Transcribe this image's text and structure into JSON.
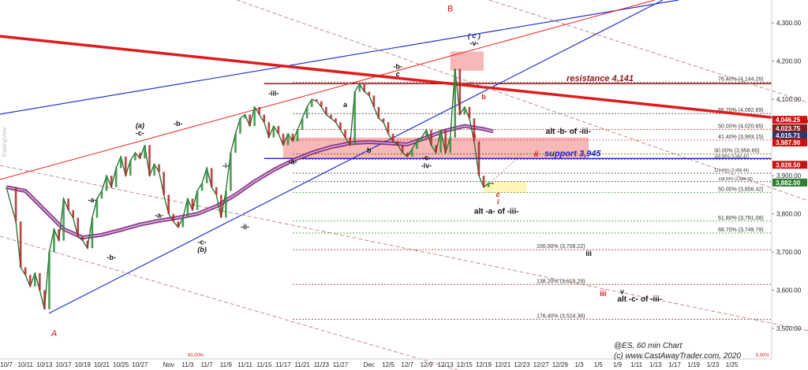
{
  "chart_data": {
    "type": "line",
    "title": "@ES, 60 min Chart",
    "credit": "(c) www.CastAwayTrader.com, 2020",
    "watermark": "TradingView",
    "ylim": [
      3420,
      4360
    ],
    "y_ticks": [
      {
        "value": 3500,
        "label": "3,500.00"
      },
      {
        "value": 3600,
        "label": "3,600.00"
      },
      {
        "value": 3700,
        "label": "3,700.00"
      },
      {
        "value": 3800,
        "label": "3,800.00"
      },
      {
        "value": 3900,
        "label": "3,900.00"
      },
      {
        "value": 4100,
        "label": "4,100.00"
      },
      {
        "value": 4200,
        "label": "4,200.00"
      },
      {
        "value": 4300,
        "label": "4,300.00"
      }
    ],
    "x_ticks": [
      {
        "bar": 0,
        "label": "10/7"
      },
      {
        "bar": 4,
        "label": "10/11"
      },
      {
        "bar": 8,
        "label": "10/13"
      },
      {
        "bar": 12,
        "label": "10/17"
      },
      {
        "bar": 16,
        "label": "10/19"
      },
      {
        "bar": 20,
        "label": "10/21"
      },
      {
        "bar": 24,
        "label": "10/25"
      },
      {
        "bar": 28,
        "label": "10/27"
      },
      {
        "bar": 34,
        "label": "Nov"
      },
      {
        "bar": 38,
        "label": "11/3"
      },
      {
        "bar": 42,
        "label": "11/7"
      },
      {
        "bar": 46,
        "label": "11/9"
      },
      {
        "bar": 50,
        "label": "11/11"
      },
      {
        "bar": 54,
        "label": "11/15"
      },
      {
        "bar": 58,
        "label": "11/17"
      },
      {
        "bar": 62,
        "label": "11/21"
      },
      {
        "bar": 66,
        "label": "11/23"
      },
      {
        "bar": 70,
        "label": "11/27"
      },
      {
        "bar": 76,
        "label": "Dec"
      },
      {
        "bar": 80,
        "label": "12/5"
      },
      {
        "bar": 84,
        "label": "12/7"
      },
      {
        "bar": 88,
        "label": "12/9"
      },
      {
        "bar": 92,
        "label": "12/13"
      },
      {
        "bar": 96,
        "label": "12/15"
      },
      {
        "bar": 100,
        "label": "12/19"
      },
      {
        "bar": 104,
        "label": "12/21"
      },
      {
        "bar": 108,
        "label": "12/23"
      },
      {
        "bar": 112,
        "label": "12/27"
      },
      {
        "bar": 116,
        "label": "12/29"
      },
      {
        "bar": 120,
        "label": "1/3"
      },
      {
        "bar": 124,
        "label": "1/5"
      },
      {
        "bar": 128,
        "label": "1/9"
      },
      {
        "bar": 132,
        "label": "1/11"
      },
      {
        "bar": 136,
        "label": "1/13"
      },
      {
        "bar": 140,
        "label": "1/17"
      },
      {
        "bar": 144,
        "label": "1/19"
      },
      {
        "bar": 148,
        "label": "1/23"
      },
      {
        "bar": 152,
        "label": "1/25"
      }
    ],
    "price_path": [
      [
        0,
        3870
      ],
      [
        2,
        3780
      ],
      [
        3,
        3660
      ],
      [
        4,
        3640
      ],
      [
        5,
        3610
      ],
      [
        6,
        3645
      ],
      [
        7,
        3600
      ],
      [
        8,
        3550
      ],
      [
        9,
        3700
      ],
      [
        10,
        3760
      ],
      [
        11,
        3730
      ],
      [
        12,
        3840
      ],
      [
        13,
        3810
      ],
      [
        14,
        3790
      ],
      [
        15,
        3740
      ],
      [
        16,
        3730
      ],
      [
        17,
        3710
      ],
      [
        18,
        3790
      ],
      [
        19,
        3840
      ],
      [
        20,
        3860
      ],
      [
        21,
        3900
      ],
      [
        22,
        3870
      ],
      [
        23,
        3920
      ],
      [
        24,
        3950
      ],
      [
        25,
        3900
      ],
      [
        26,
        3940
      ],
      [
        27,
        3960
      ],
      [
        28,
        3945
      ],
      [
        29,
        3980
      ],
      [
        30,
        3900
      ],
      [
        31,
        3930
      ],
      [
        32,
        3910
      ],
      [
        33,
        3850
      ],
      [
        34,
        3800
      ],
      [
        35,
        3780
      ],
      [
        36,
        3765
      ],
      [
        37,
        3790
      ],
      [
        38,
        3840
      ],
      [
        39,
        3810
      ],
      [
        40,
        3860
      ],
      [
        41,
        3880
      ],
      [
        42,
        3920
      ],
      [
        43,
        3870
      ],
      [
        44,
        3850
      ],
      [
        45,
        3790
      ],
      [
        46,
        3860
      ],
      [
        47,
        3960
      ],
      [
        48,
        4010
      ],
      [
        49,
        4050
      ],
      [
        50,
        4060
      ],
      [
        51,
        4030
      ],
      [
        52,
        4080
      ],
      [
        53,
        4060
      ],
      [
        54,
        4040
      ],
      [
        55,
        4000
      ],
      [
        56,
        4030
      ],
      [
        57,
        4010
      ],
      [
        58,
        3980
      ],
      [
        59,
        4010
      ],
      [
        60,
        3990
      ],
      [
        61,
        4020
      ],
      [
        62,
        4050
      ],
      [
        63,
        4080
      ],
      [
        64,
        4100
      ],
      [
        65,
        4095
      ],
      [
        66,
        4080
      ],
      [
        67,
        4060
      ],
      [
        68,
        4050
      ],
      [
        69,
        4040
      ],
      [
        70,
        4020
      ],
      [
        71,
        4000
      ],
      [
        72,
        3980
      ],
      [
        73,
        4120
      ],
      [
        74,
        4140
      ],
      [
        75,
        4120
      ],
      [
        76,
        4110
      ],
      [
        77,
        4080
      ],
      [
        78,
        4050
      ],
      [
        79,
        4040
      ],
      [
        80,
        4010
      ],
      [
        81,
        3990
      ],
      [
        82,
        3980
      ],
      [
        83,
        3960
      ],
      [
        84,
        3950
      ],
      [
        85,
        3970
      ],
      [
        86,
        3990
      ],
      [
        87,
        4000
      ],
      [
        88,
        4020
      ],
      [
        89,
        3980
      ],
      [
        90,
        3960
      ],
      [
        91,
        4020
      ],
      [
        92,
        3960
      ],
      [
        93,
        4000
      ],
      [
        94,
        4180
      ],
      [
        95,
        4060
      ],
      [
        96,
        4080
      ],
      [
        97,
        4050
      ],
      [
        98,
        3990
      ],
      [
        99,
        3900
      ],
      [
        100,
        3870
      ],
      [
        101,
        3880
      ],
      [
        102,
        3880
      ]
    ],
    "moving_average": [
      [
        0,
        3870
      ],
      [
        4,
        3860
      ],
      [
        8,
        3810
      ],
      [
        12,
        3760
      ],
      [
        16,
        3738
      ],
      [
        20,
        3745
      ],
      [
        24,
        3758
      ],
      [
        28,
        3772
      ],
      [
        32,
        3782
      ],
      [
        36,
        3790
      ],
      [
        40,
        3800
      ],
      [
        44,
        3820
      ],
      [
        48,
        3850
      ],
      [
        52,
        3885
      ],
      [
        56,
        3915
      ],
      [
        60,
        3940
      ],
      [
        64,
        3960
      ],
      [
        68,
        3975
      ],
      [
        72,
        3985
      ],
      [
        76,
        3988
      ],
      [
        80,
        3985
      ],
      [
        84,
        3982
      ],
      [
        88,
        4000
      ],
      [
        92,
        4018
      ],
      [
        96,
        4030
      ],
      [
        100,
        4022
      ],
      [
        102,
        4016
      ]
    ],
    "fib_levels": [
      {
        "value": 4144.26,
        "label": "76.40% (4,144.26)",
        "color": "#8b1a1a"
      },
      {
        "value": 4062.69,
        "label": "66.70% (4,062.69)",
        "color": "#333333"
      },
      {
        "value": 4020.65,
        "label": "50.00% (4,020.65)",
        "color": "#cc2222"
      },
      {
        "value": 3993.15,
        "label": "41.40% (3,993.15)",
        "color": "#cc2222"
      },
      {
        "value": 3956.65,
        "label": "30.00% (3,956.65)",
        "color": "#333333"
      },
      {
        "value": 3942.42,
        "label": "100.00% (3,942.42)",
        "color": "#333333"
      },
      {
        "value": 3906.49,
        "label": "123.60% (3,906.49)",
        "color": "#333333"
      },
      {
        "value": 3884.26,
        "label": "138.20% (3,884.26)",
        "color": "#333333"
      },
      {
        "value": 3856.42,
        "label": "50.00% (3,856.42)",
        "color": "#228b22"
      },
      {
        "value": 3781.08,
        "label": "61.80% (3,781.08)",
        "color": "#228b22"
      },
      {
        "value": 3749.79,
        "label": "66.70% (3,749.79)",
        "color": "#228b22"
      },
      {
        "value": 3706.22,
        "label": "100.00% (3,706.22)",
        "color": "#8b1a1a"
      },
      {
        "value": 3615.29,
        "label": "138.20% (3,615.29)",
        "color": "#8b1a1a"
      },
      {
        "value": 3524.36,
        "label": "176.40% (3,524.36)",
        "color": "#8b1a1a"
      }
    ],
    "price_tags": [
      {
        "value": 4046.25,
        "label": "4,046.25",
        "color": "#cc1111"
      },
      {
        "value": 4024,
        "label": "4,023.75",
        "color": "#8b1a1a"
      },
      {
        "value": 4015.71,
        "label": "4,015.71",
        "color": "#333366"
      },
      {
        "value": 3987.9,
        "label": "3,987.90",
        "color": "#cc1111"
      },
      {
        "value": 3928.5,
        "label": "3,928.50",
        "color": "#cc1111"
      },
      {
        "value": 3882.0,
        "label": "3,882.00",
        "color": "#2e7d32"
      }
    ],
    "key_levels": [
      {
        "value": 4141,
        "label": "resistance 4,141",
        "color": "#8b1a1a"
      },
      {
        "value": 3945,
        "label": "support 3,945",
        "color": "#2222cc"
      }
    ],
    "zones": [
      {
        "x0": 93,
        "x1": 100,
        "y0": 4175,
        "y1": 4225,
        "color": "#f4a0a0"
      },
      {
        "x0": 58,
        "x1": 122,
        "y0": 3945,
        "y1": 4000,
        "color": "#f4a0a0"
      },
      {
        "x0": 100,
        "x1": 109,
        "y0": 3855,
        "y1": 3885,
        "color": "#fff3a0"
      }
    ],
    "wave_labels": [
      {
        "bar": 93,
        "value": 4330,
        "text": "B",
        "color": "#dd1111",
        "size": 11
      },
      {
        "bar": 98,
        "value": 4260,
        "text": "( c )",
        "color": "#1a1a8c",
        "size": 9
      },
      {
        "bar": 98,
        "value": 4240,
        "text": "-v-",
        "color": "#111111",
        "size": 9
      },
      {
        "bar": 82,
        "value": 4180,
        "text": "-b-",
        "color": "#111111",
        "size": 9
      },
      {
        "bar": 82,
        "value": 4160,
        "text": "c",
        "color": "#111111",
        "size": 9
      },
      {
        "bar": 100,
        "value": 4100,
        "text": "b",
        "color": "#dd1111",
        "size": 9
      },
      {
        "bar": 98,
        "value": 4000,
        "text": "a",
        "color": "#dd1111",
        "size": 9
      },
      {
        "bar": 56,
        "value": 4110,
        "text": "-iii-",
        "color": "#111111",
        "size": 9
      },
      {
        "bar": 71,
        "value": 4080,
        "text": "a",
        "color": "#111111",
        "size": 9
      },
      {
        "bar": 76,
        "value": 3960,
        "text": "b",
        "color": "#111111",
        "size": 9
      },
      {
        "bar": 60,
        "value": 3930,
        "text": "-a-",
        "color": "#111111",
        "size": 9
      },
      {
        "bar": 88,
        "value": 3940,
        "text": "-c-",
        "color": "#111111",
        "size": 9
      },
      {
        "bar": 88,
        "value": 3920,
        "text": "-iv-",
        "color": "#111111",
        "size": 9
      },
      {
        "bar": 28,
        "value": 4025,
        "text": "(a)",
        "color": "#111111",
        "size": 9
      },
      {
        "bar": 28,
        "value": 4005,
        "text": "-c-",
        "color": "#111111",
        "size": 9
      },
      {
        "bar": 36,
        "value": 4030,
        "text": "-b-",
        "color": "#111111",
        "size": 9
      },
      {
        "bar": 46,
        "value": 3920,
        "text": "-i-",
        "color": "#111111",
        "size": 9
      },
      {
        "bar": 18,
        "value": 3830,
        "text": "-a-",
        "color": "#111111",
        "size": 9
      },
      {
        "bar": 32,
        "value": 3790,
        "text": "-a-",
        "color": "#111111",
        "size": 9
      },
      {
        "bar": 22,
        "value": 3680,
        "text": "-b-",
        "color": "#111111",
        "size": 9
      },
      {
        "bar": 41,
        "value": 3720,
        "text": "-c-",
        "color": "#111111",
        "size": 9
      },
      {
        "bar": 41,
        "value": 3700,
        "text": "(b)",
        "color": "#111111",
        "size": 9
      },
      {
        "bar": 50,
        "value": 3760,
        "text": "-ii-",
        "color": "#111111",
        "size": 9
      },
      {
        "bar": 103,
        "value": 3845,
        "text": "c",
        "color": "#dd1111",
        "size": 9
      },
      {
        "bar": 103,
        "value": 3825,
        "text": "i",
        "color": "#dd1111",
        "size": 9
      },
      {
        "bar": 111,
        "value": 3950,
        "text": "ii",
        "color": "#dd1111",
        "size": 10
      },
      {
        "bar": 122,
        "value": 3690,
        "text": "iii",
        "color": "#111111",
        "size": 9
      },
      {
        "bar": 125,
        "value": 3585,
        "text": "iii",
        "color": "#dd1111",
        "size": 10
      },
      {
        "bar": 129,
        "value": 3590,
        "text": "v",
        "color": "#111111",
        "size": 9
      },
      {
        "bar": 10,
        "value": 3480,
        "text": "A",
        "color": "#dd1111",
        "size": 11
      }
    ],
    "notes": [
      {
        "bar": 113,
        "value": 4010,
        "text": "alt -b- of -iii-",
        "color": "#111111"
      },
      {
        "bar": 98,
        "value": 3800,
        "text": "alt -a- of -iii-",
        "color": "#111111"
      },
      {
        "bar": 128,
        "value": 3570,
        "text": "alt -c- of -iii-",
        "color": "#111111"
      }
    ],
    "bottom_labels": [
      {
        "bar": 38,
        "text": "60.00%"
      },
      {
        "bar": 157,
        "text": "0.00%"
      }
    ]
  }
}
